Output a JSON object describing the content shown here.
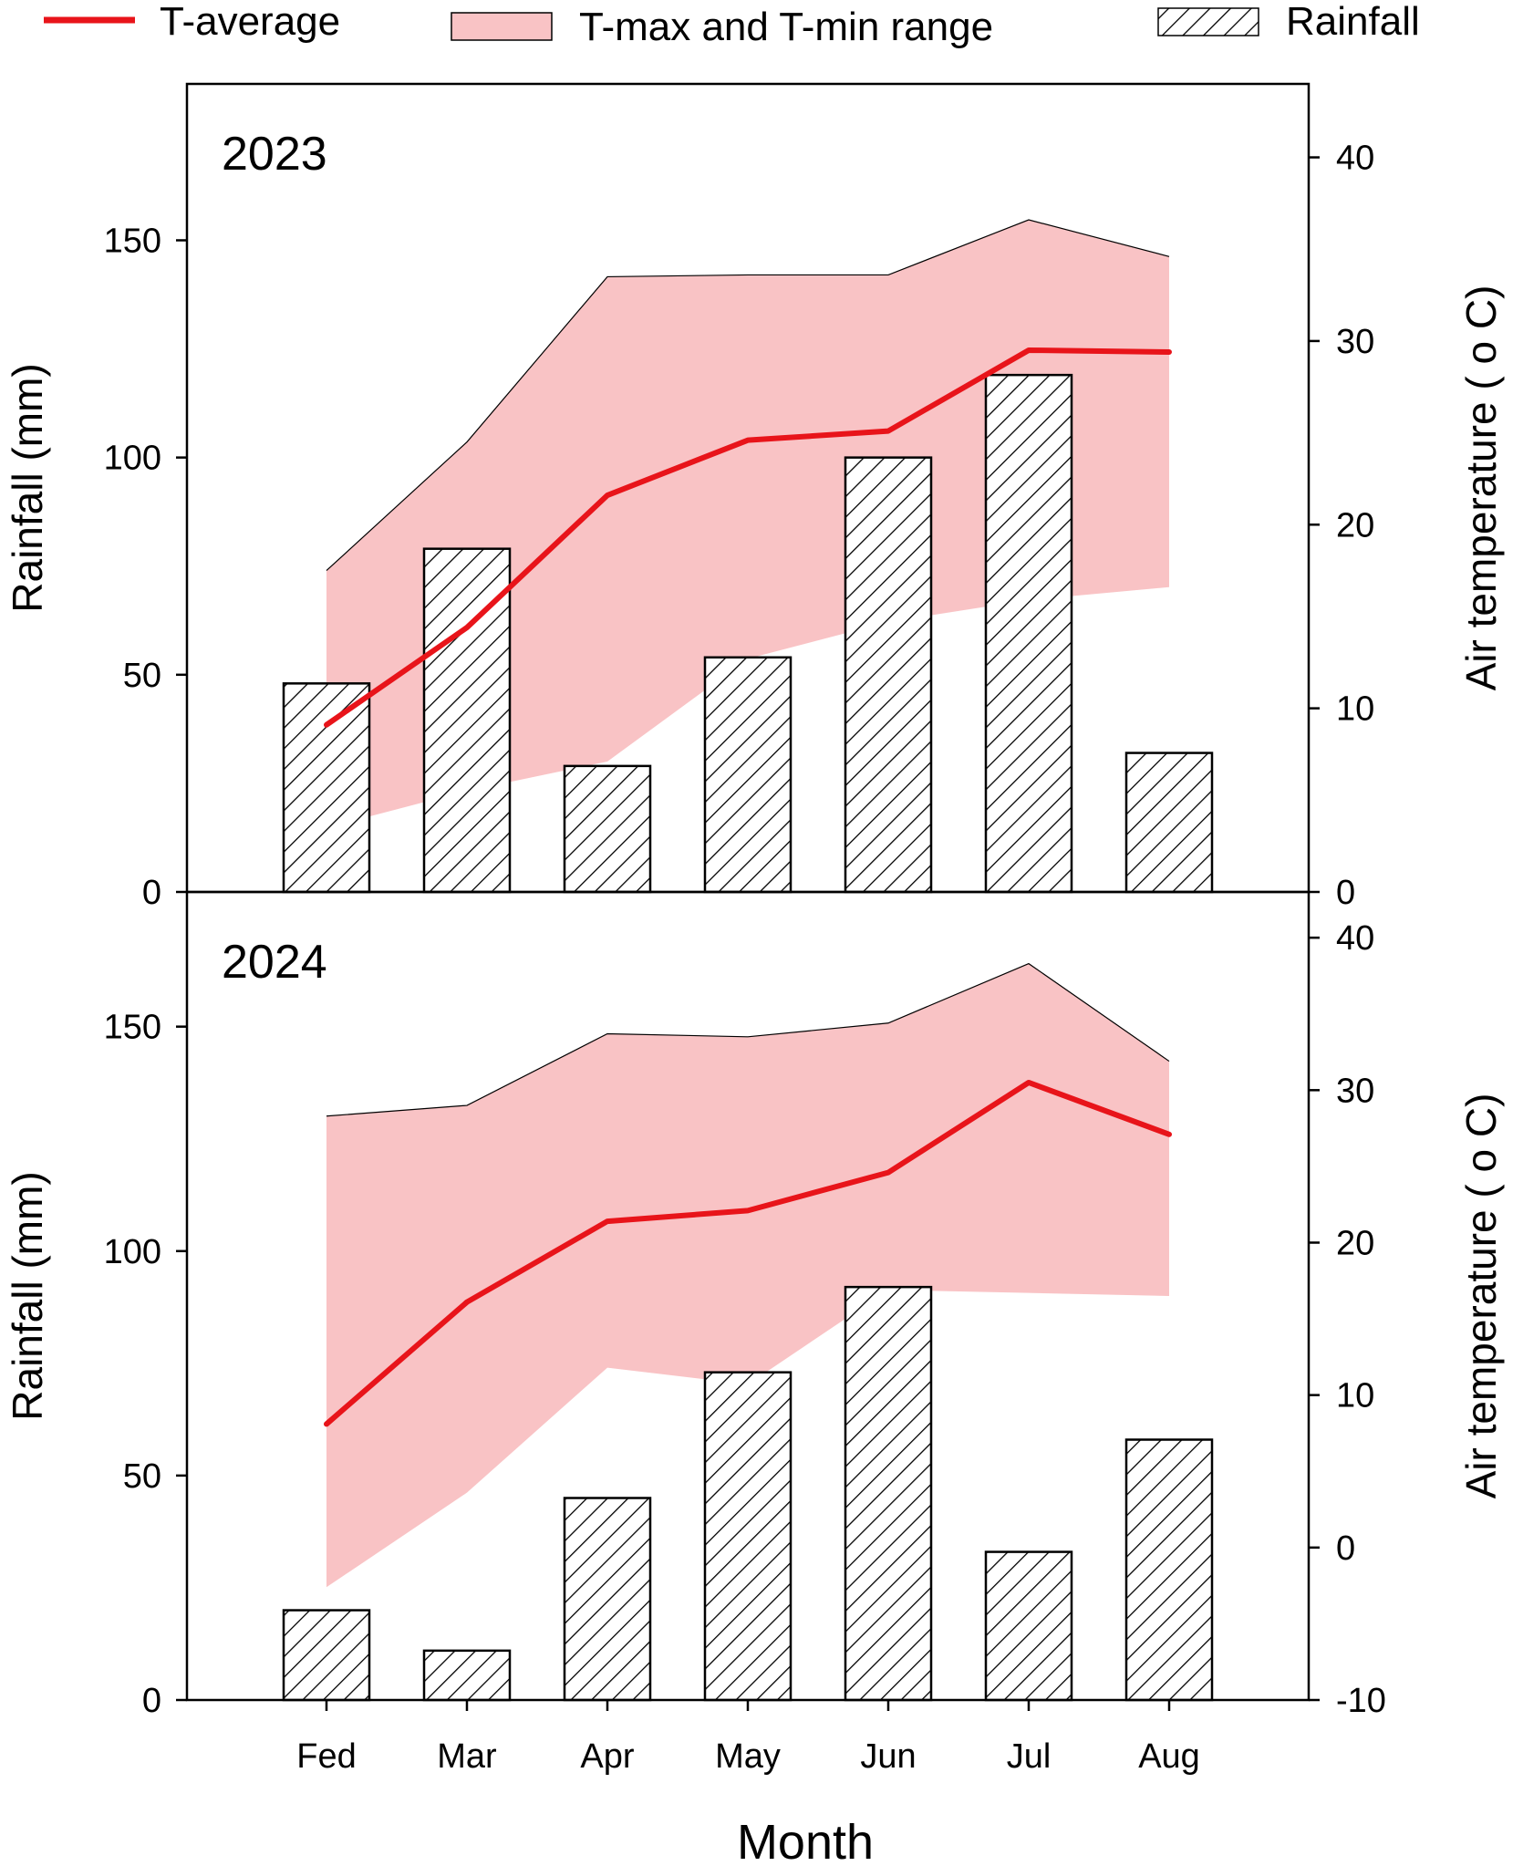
{
  "legend": {
    "t_average": "T-average",
    "t_range": "T-max and T-min range",
    "rainfall": "Rainfall"
  },
  "x_axis_title": "Month",
  "colors": {
    "t_average": "#e8141a",
    "t_range_fill": "#f9c3c5",
    "bar_hatch": "#000000"
  },
  "chart_data": [
    {
      "type": "bar",
      "panel": "2023",
      "categories": [
        "Fed",
        "Mar",
        "Apr",
        "May",
        "Jun",
        "Jul",
        "Aug"
      ],
      "title": "2023",
      "xlabel": "Month",
      "ylabel": "Rainfall (mm)",
      "y2label": "Air temperature ( o C)",
      "ylim": [
        0,
        186
      ],
      "y2lim": [
        0,
        44
      ],
      "yticks": [
        0,
        50,
        100,
        150
      ],
      "y2ticks": [
        0,
        10,
        20,
        30,
        40
      ],
      "series": [
        {
          "name": "Rainfall",
          "kind": "bar",
          "axis": "left",
          "values": [
            48,
            79,
            29,
            54,
            100,
            119,
            32
          ]
        },
        {
          "name": "T-average",
          "kind": "line",
          "axis": "right",
          "values": [
            9.1,
            14.4,
            21.6,
            24.6,
            25.1,
            29.5,
            29.4
          ]
        },
        {
          "name": "T-max",
          "kind": "range-upper",
          "axis": "right",
          "values": [
            17.5,
            24.5,
            33.5,
            33.6,
            33.6,
            36.6,
            34.6
          ]
        },
        {
          "name": "T-min",
          "kind": "range-lower",
          "axis": "right",
          "values": [
            3.5,
            5.5,
            7.1,
            12.7,
            14.7,
            15.9,
            16.6
          ]
        }
      ]
    },
    {
      "type": "bar",
      "panel": "2024",
      "categories": [
        "Fed",
        "Mar",
        "Apr",
        "May",
        "Jun",
        "Jul",
        "Aug"
      ],
      "title": "2024",
      "xlabel": "Month",
      "ylabel": "Rainfall (mm)",
      "y2label": "Air temperature ( o C)",
      "ylim": [
        0,
        180
      ],
      "y2lim": [
        -10,
        43
      ],
      "yticks": [
        0,
        50,
        100,
        150
      ],
      "y2ticks": [
        -10,
        0,
        10,
        20,
        30,
        40
      ],
      "series": [
        {
          "name": "Rainfall",
          "kind": "bar",
          "axis": "left",
          "values": [
            20,
            11,
            45,
            73,
            92,
            33,
            58
          ]
        },
        {
          "name": "T-average",
          "kind": "line",
          "axis": "right",
          "values": [
            8.1,
            16.1,
            21.4,
            22.1,
            24.6,
            30.5,
            27.1
          ]
        },
        {
          "name": "T-max",
          "kind": "range-upper",
          "axis": "right",
          "values": [
            28.3,
            29.0,
            33.7,
            33.5,
            34.4,
            38.3,
            31.9
          ]
        },
        {
          "name": "T-min",
          "kind": "range-lower",
          "axis": "right",
          "values": [
            -2.6,
            3.6,
            11.8,
            10.7,
            16.9,
            16.7,
            16.5
          ]
        }
      ]
    }
  ]
}
